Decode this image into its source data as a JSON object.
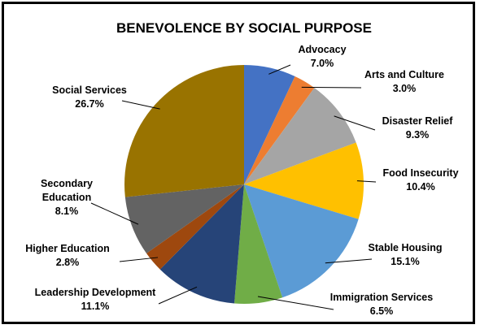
{
  "chart_data": {
    "type": "pie",
    "title": "BENEVOLENCE BY SOCIAL PURPOSE",
    "slices": [
      {
        "category": "Advocacy",
        "value": 7.0,
        "label": "7.0%",
        "color": "#4472C4"
      },
      {
        "category": "Arts and Culture",
        "value": 3.0,
        "label": "3.0%",
        "color": "#ED7D31"
      },
      {
        "category": "Disaster Relief",
        "value": 9.3,
        "label": "9.3%",
        "color": "#A5A5A5"
      },
      {
        "category": "Food Insecurity",
        "value": 10.4,
        "label": "10.4%",
        "color": "#FFC000"
      },
      {
        "category": "Stable Housing",
        "value": 15.1,
        "label": "15.1%",
        "color": "#5B9BD5"
      },
      {
        "category": "Immigration Services",
        "value": 6.5,
        "label": "6.5%",
        "color": "#70AD47"
      },
      {
        "category": "Leadership Development",
        "value": 11.1,
        "label": "11.1%",
        "color": "#264478"
      },
      {
        "category": "Higher Education",
        "value": 2.8,
        "label": "2.8%",
        "color": "#9E480E"
      },
      {
        "category": "Secondary Education",
        "value": 8.1,
        "label": "8.1%",
        "color": "#636363"
      },
      {
        "category": "Social Services",
        "value": 26.7,
        "label": "26.7%",
        "color": "#997300"
      }
    ]
  }
}
